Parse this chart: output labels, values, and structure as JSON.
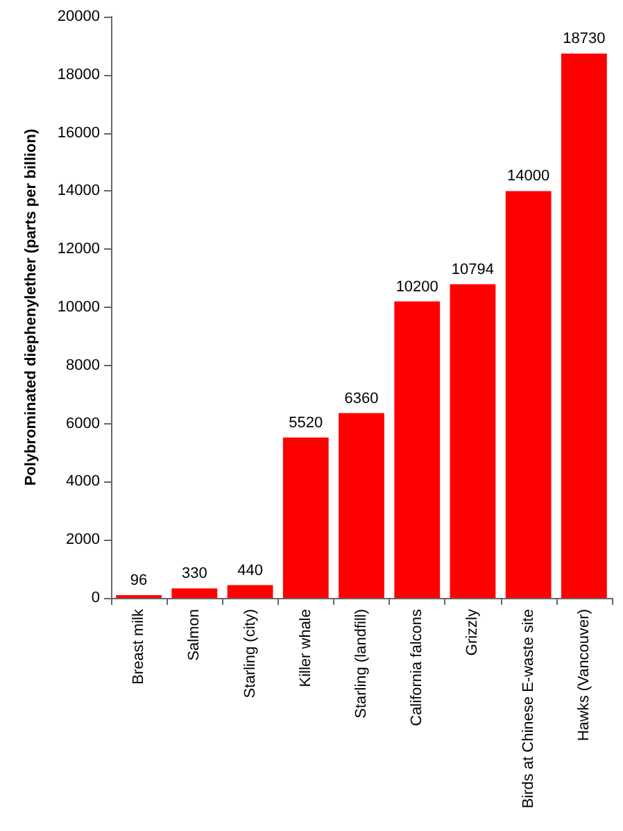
{
  "chart_data": {
    "type": "bar",
    "ylabel": "Polybrominated diephenylether (parts per billion)",
    "categories": [
      "Breast milk",
      "Salmon",
      "Starling (city)",
      "Killer whale",
      "Starling (landfill)",
      "California falcons",
      "Grizzly",
      "Birds at Chinese E-waste site",
      "Hawks (Vancouver)"
    ],
    "values": [
      96,
      330,
      440,
      5520,
      6360,
      10200,
      10794,
      14000,
      18730
    ],
    "color": "#ff0000",
    "ylim": [
      0,
      20000
    ],
    "yticks": [
      0,
      2000,
      4000,
      6000,
      8000,
      10000,
      12000,
      14000,
      16000,
      18000,
      20000
    ],
    "grid": false,
    "data_labels": true
  }
}
